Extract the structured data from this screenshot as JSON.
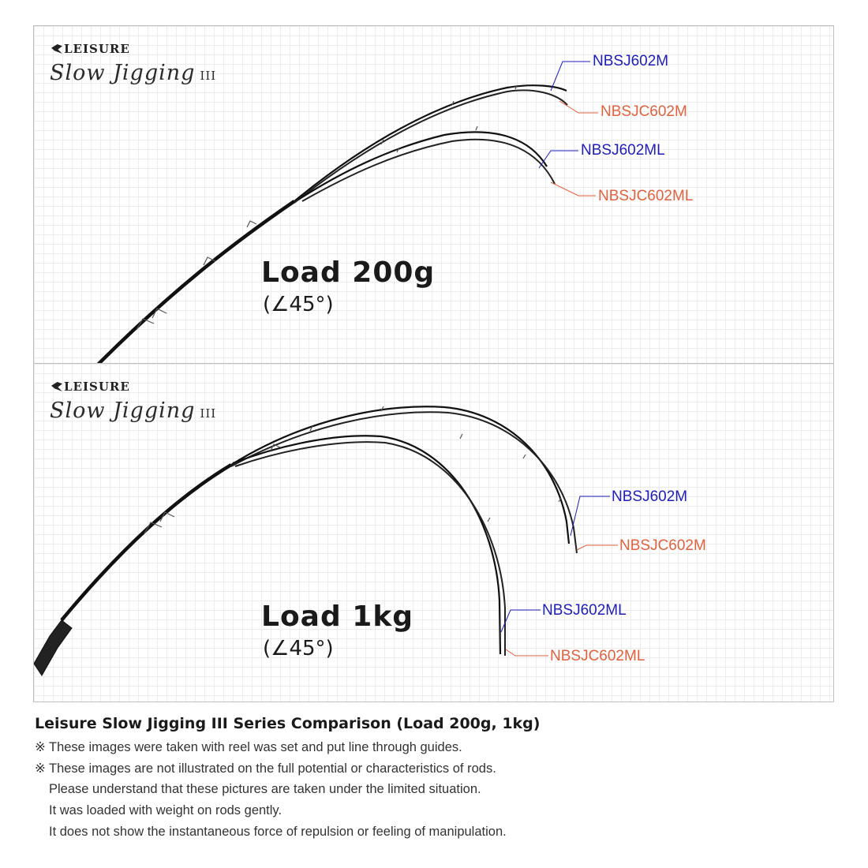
{
  "brand": {
    "name": "LEISURE",
    "series": "Slow Jigging",
    "series_numeral": "III"
  },
  "panels": [
    {
      "load_title": "Load 200g",
      "angle": "(∠45°)",
      "labels": {
        "m_solid": "NBSJ602M",
        "m_carbon": "NBSJC602M",
        "ml_solid": "NBSJ602ML",
        "ml_carbon": "NBSJC602ML"
      }
    },
    {
      "load_title": "Load 1kg",
      "angle": "(∠45°)",
      "labels": {
        "m_solid": "NBSJ602M",
        "m_carbon": "NBSJC602M",
        "ml_solid": "NBSJ602ML",
        "ml_carbon": "NBSJC602ML"
      }
    }
  ],
  "colors": {
    "solid_label": "#1d1db8",
    "carbon_label": "#e0613d",
    "rod": "#111111",
    "grid": "#ececec"
  },
  "caption": {
    "title": "Leisure Slow Jigging III Series Comparison (Load 200g, 1kg)",
    "mark": "※",
    "notes": [
      "These images were taken with reel was set and put line through guides.",
      "These images are not illustrated on the full potential or characteristics of rods.",
      "Please understand that these pictures are taken under the limited situation.",
      "It was loaded with weight on rods gently.",
      "It does not show the instantaneous force of repulsion or feeling of manipulation."
    ]
  }
}
